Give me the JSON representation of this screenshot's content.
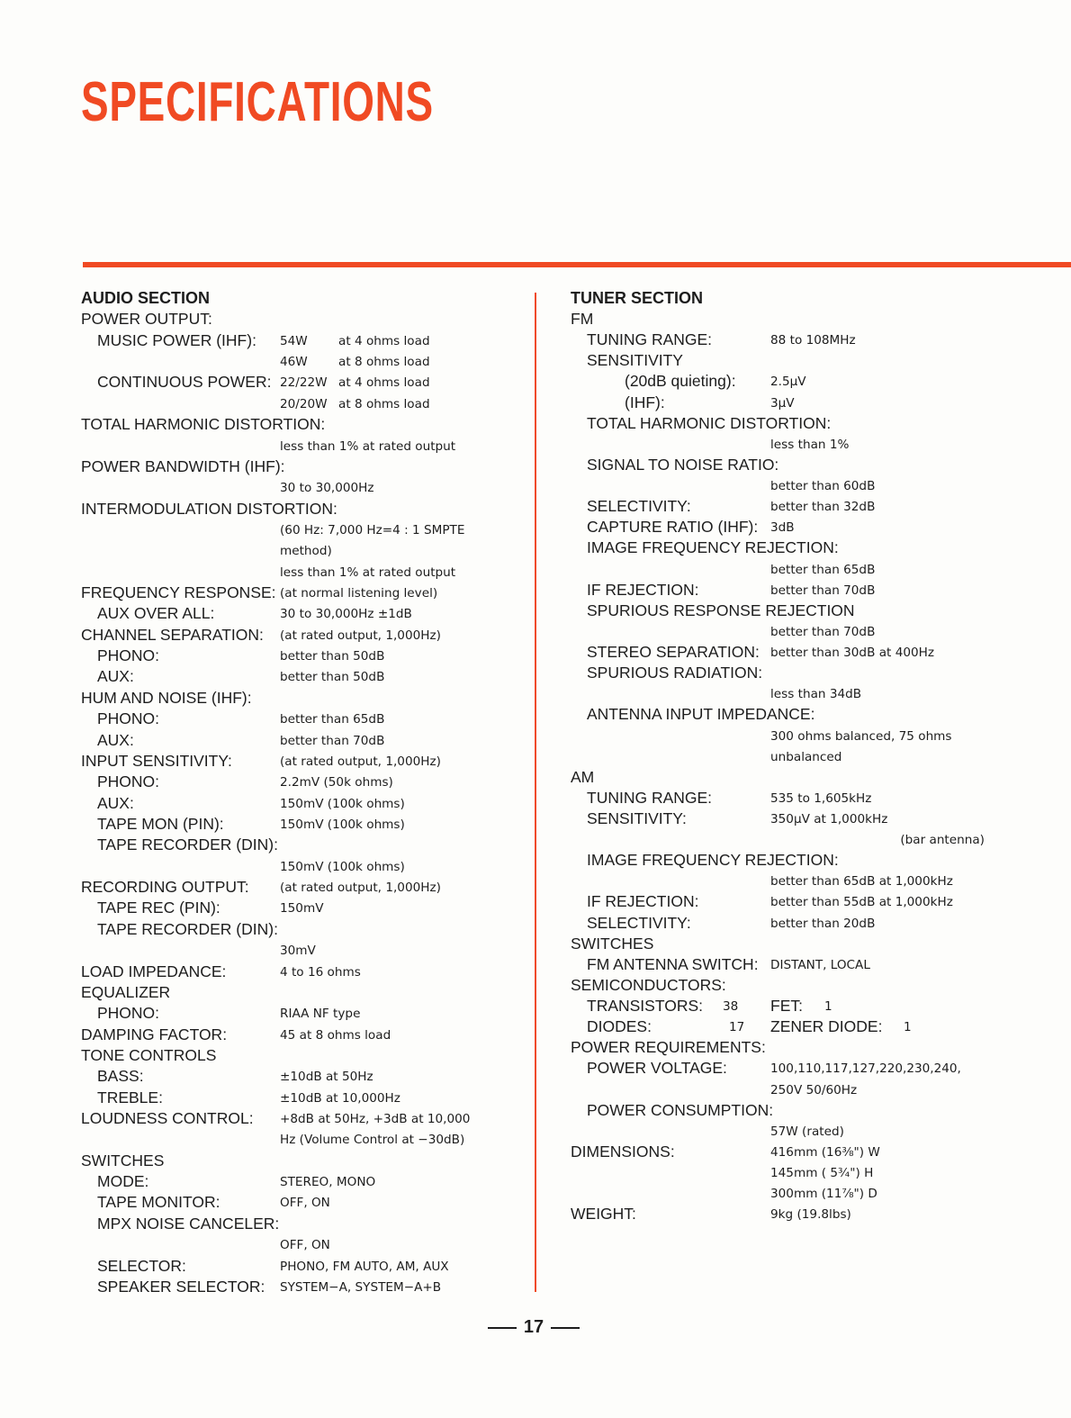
{
  "title": "SPECIFICATIONS",
  "page_number": "17",
  "colors": {
    "accent": "#f04a23",
    "text": "#1d1d1d"
  },
  "audio": {
    "rows": [
      {
        "l": "AUDIO SECTION",
        "h": true
      },
      {
        "l": "POWER OUTPUT:"
      },
      {
        "l": "MUSIC POWER (IHF):",
        "i": 1,
        "v": "54W",
        "v2": "at 4 ohms load"
      },
      {
        "v": "46W",
        "v2": "at 8 ohms load"
      },
      {
        "l": "CONTINUOUS POWER:",
        "i": 1,
        "v": "22/22W",
        "v2": "at 4 ohms load"
      },
      {
        "v": "20/20W",
        "v2": "at 8 ohms load"
      },
      {
        "l": "TOTAL HARMONIC DISTORTION:"
      },
      {
        "v": "less than 1% at rated output"
      },
      {
        "l": "POWER BANDWIDTH (IHF):"
      },
      {
        "v": "30 to 30,000Hz"
      },
      {
        "l": "INTERMODULATION DISTORTION:"
      },
      {
        "v": "(60 Hz: 7,000 Hz=4 : 1  SMPTE"
      },
      {
        "v": "method)"
      },
      {
        "v": "less than 1% at rated output"
      },
      {
        "l": "FREQUENCY RESPONSE:",
        "v": "(at normal listening level)"
      },
      {
        "l": "AUX OVER ALL:",
        "i": 1,
        "v": "30 to 30,000Hz ±1dB"
      },
      {
        "l": "CHANNEL SEPARATION:",
        "v": "(at rated output, 1,000Hz)"
      },
      {
        "l": "PHONO:",
        "i": 1,
        "v": "better than 50dB"
      },
      {
        "l": "AUX:",
        "i": 1,
        "v": "better than 50dB"
      },
      {
        "l": "HUM AND NOISE (IHF):"
      },
      {
        "l": "PHONO:",
        "i": 1,
        "v": "better than 65dB"
      },
      {
        "l": "AUX:",
        "i": 1,
        "v": "better than 70dB"
      },
      {
        "l": "INPUT SENSITIVITY:",
        "v": "(at rated output, 1,000Hz)"
      },
      {
        "l": "PHONO:",
        "i": 1,
        "v": "2.2mV (50k ohms)"
      },
      {
        "l": "AUX:",
        "i": 1,
        "v": "150mV (100k ohms)"
      },
      {
        "l": "TAPE MON (PIN):",
        "i": 1,
        "v": "150mV (100k ohms)"
      },
      {
        "l": "TAPE RECORDER (DIN):",
        "i": 1
      },
      {
        "v": "150mV (100k ohms)"
      },
      {
        "l": "RECORDING OUTPUT:",
        "v": "(at rated output, 1,000Hz)"
      },
      {
        "l": "TAPE REC (PIN):",
        "i": 1,
        "v": "150mV"
      },
      {
        "l": "TAPE RECORDER (DIN):",
        "i": 1
      },
      {
        "v": "30mV"
      },
      {
        "l": "LOAD IMPEDANCE:",
        "v": "4 to 16 ohms"
      },
      {
        "l": "EQUALIZER"
      },
      {
        "l": "PHONO:",
        "i": 1,
        "v": "RIAA NF type"
      },
      {
        "l": "DAMPING FACTOR:",
        "v": "45 at 8 ohms load"
      },
      {
        "l": "TONE CONTROLS"
      },
      {
        "l": "BASS:",
        "i": 1,
        "v": "±10dB at 50Hz"
      },
      {
        "l": "TREBLE:",
        "i": 1,
        "v": "±10dB at 10,000Hz"
      },
      {
        "l": "LOUDNESS CONTROL:",
        "v": "+8dB at 50Hz, +3dB at 10,000"
      },
      {
        "v": "Hz (Volume Control at −30dB)"
      },
      {
        "l": "SWITCHES"
      },
      {
        "l": "MODE:",
        "i": 1,
        "v": "STEREO, MONO"
      },
      {
        "l": "TAPE MONITOR:",
        "i": 1,
        "v": "OFF, ON"
      },
      {
        "l": "MPX NOISE CANCELER:",
        "i": 1
      },
      {
        "v": "OFF, ON"
      },
      {
        "l": "SELECTOR:",
        "i": 1,
        "v": "PHONO, FM AUTO, AM, AUX"
      },
      {
        "l": "SPEAKER SELECTOR:",
        "i": 1,
        "v": "SYSTEM−A, SYSTEM−A+B"
      }
    ]
  },
  "tuner": {
    "rows": [
      {
        "l": "TUNER SECTION",
        "h": true
      },
      {
        "l": "FM"
      },
      {
        "l": "TUNING RANGE:",
        "i": 1,
        "v": "88 to 108MHz"
      },
      {
        "l": "SENSITIVITY",
        "i": 1
      },
      {
        "l": "(20dB quieting):",
        "i": 2,
        "v": "2.5μV"
      },
      {
        "l": "(IHF):",
        "i": 2,
        "v": "3μV"
      },
      {
        "l": "TOTAL HARMONIC DISTORTION:",
        "i": 1
      },
      {
        "v": "less than 1%"
      },
      {
        "l": "SIGNAL TO NOISE RATIO:",
        "i": 1
      },
      {
        "v": "better than 60dB"
      },
      {
        "l": "SELECTIVITY:",
        "i": 1,
        "v": "better than 32dB"
      },
      {
        "l": "CAPTURE RATIO (IHF):",
        "i": 1,
        "v": "3dB"
      },
      {
        "l": "IMAGE FREQUENCY REJECTION:",
        "i": 1
      },
      {
        "v": "better than 65dB"
      },
      {
        "l": "IF REJECTION:",
        "i": 1,
        "v": "better than 70dB"
      },
      {
        "l": "SPURIOUS RESPONSE REJECTION",
        "i": 1
      },
      {
        "v": "better than 70dB"
      },
      {
        "l": "STEREO SEPARATION:",
        "i": 1,
        "v": "better than 30dB at 400Hz"
      },
      {
        "l": "SPURIOUS RADIATION:",
        "i": 1
      },
      {
        "v": "less than 34dB"
      },
      {
        "l": "ANTENNA INPUT IMPEDANCE:",
        "i": 1
      },
      {
        "v": "300 ohms balanced, 75 ohms"
      },
      {
        "v": "unbalanced"
      },
      {
        "l": "AM"
      },
      {
        "l": "TUNING RANGE:",
        "i": 1,
        "v": "535 to 1,605kHz"
      },
      {
        "l": "SENSITIVITY:",
        "i": 1,
        "v": "350μV at 1,000kHz"
      },
      {
        "v2r": "(bar antenna)"
      },
      {
        "l": "IMAGE FREQUENCY REJECTION:",
        "i": 1
      },
      {
        "v": "better than 65dB at 1,000kHz"
      },
      {
        "l": "IF REJECTION:",
        "i": 1,
        "v": "better than 55dB at 1,000kHz"
      },
      {
        "l": "SELECTIVITY:",
        "i": 1,
        "v": "better than 20dB"
      },
      {
        "l": "SWITCHES"
      },
      {
        "l": "FM ANTENNA SWITCH:",
        "i": 1,
        "v": "DISTANT, LOCAL"
      },
      {
        "l": "SEMICONDUCTORS:"
      },
      {
        "l": "TRANSISTORS:",
        "i": 1,
        "n": "38",
        "l2": "FET:",
        "n2": "1"
      },
      {
        "l": "DIODES:",
        "i": 1,
        "n": "17",
        "l2": "ZENER DIODE:",
        "n2": "1"
      },
      {
        "l": "POWER REQUIREMENTS:"
      },
      {
        "l": "POWER VOLTAGE:",
        "i": 1,
        "v": "100,110,117,127,220,230,240,"
      },
      {
        "v": "250V   50/60Hz"
      },
      {
        "l": "POWER CONSUMPTION:",
        "i": 1
      },
      {
        "v": "57W (rated)"
      },
      {
        "l": "DIMENSIONS:",
        "v": "416mm (16⅜\") W"
      },
      {
        "v": "145mm ( 5¾\") H"
      },
      {
        "v": "300mm (11⅞\") D"
      },
      {
        "l": "WEIGHT:",
        "v": "9kg (19.8lbs)"
      }
    ]
  }
}
